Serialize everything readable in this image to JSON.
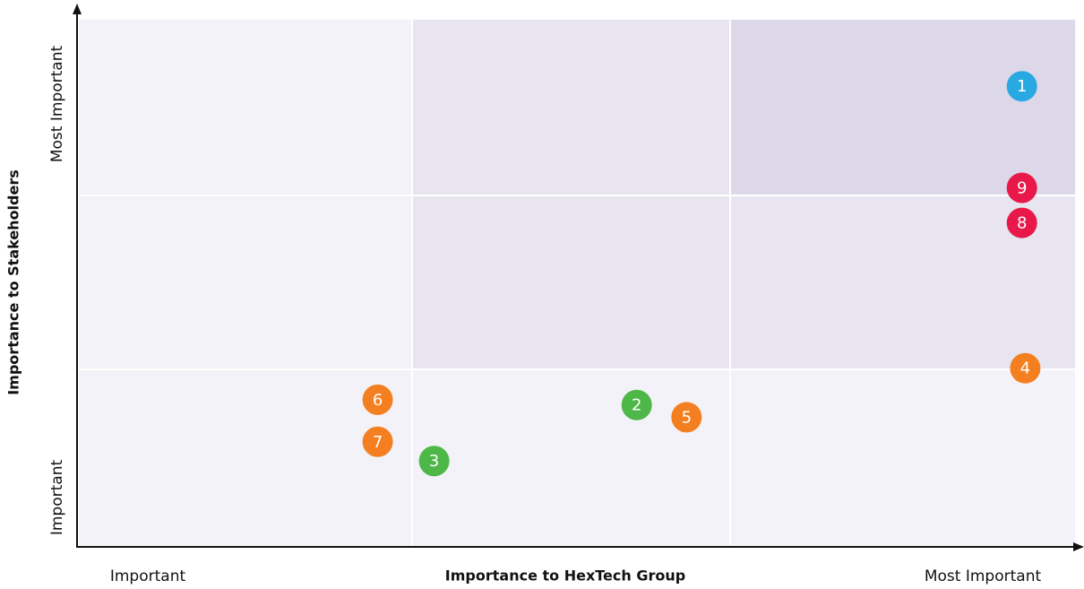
{
  "chart_data": {
    "type": "scatter",
    "x_axis_title": "Importance to HexTech Group",
    "y_axis_title": "Importance to Stakeholders",
    "x_labels": [
      "Important",
      "Most Important"
    ],
    "y_labels": [
      "Important",
      "Most Important"
    ],
    "xlim": [
      0,
      3
    ],
    "ylim": [
      0,
      3
    ],
    "points": [
      {
        "label": "1",
        "x": 2.84,
        "y": 2.62,
        "color": "#29a9e1"
      },
      {
        "label": "2",
        "x": 1.68,
        "y": 0.8,
        "color": "#4db748"
      },
      {
        "label": "3",
        "x": 1.07,
        "y": 0.48,
        "color": "#4db748"
      },
      {
        "label": "4",
        "x": 2.85,
        "y": 1.01,
        "color": "#f47f20"
      },
      {
        "label": "5",
        "x": 1.83,
        "y": 0.73,
        "color": "#f47f20"
      },
      {
        "label": "6",
        "x": 0.9,
        "y": 0.83,
        "color": "#f47f20"
      },
      {
        "label": "7",
        "x": 0.9,
        "y": 0.59,
        "color": "#f47f20"
      },
      {
        "label": "8",
        "x": 2.84,
        "y": 1.84,
        "color": "#e8194a"
      },
      {
        "label": "9",
        "x": 2.84,
        "y": 2.04,
        "color": "#e8194a"
      }
    ]
  }
}
